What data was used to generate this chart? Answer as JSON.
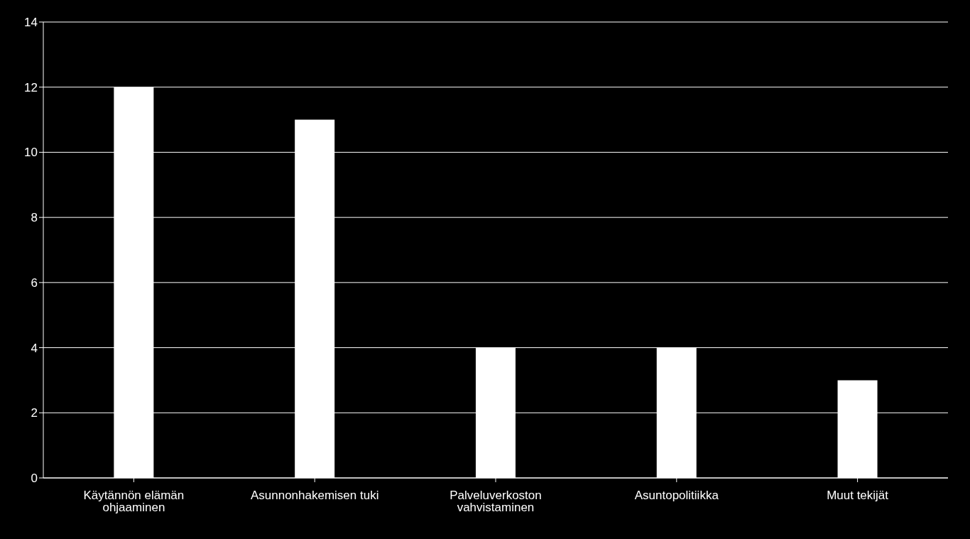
{
  "chart_data": {
    "type": "bar",
    "categories": [
      "Käytännön elämän ohjaaminen",
      "Asunnonhakemisen tuki",
      "Palveluverkoston vahvistaminen",
      "Asuntopolitiikka",
      "Muut tekijät"
    ],
    "values": [
      12,
      11,
      4,
      4,
      3
    ],
    "color": "#ffffff",
    "ylim": [
      0,
      14
    ],
    "yticks": [
      0,
      2,
      4,
      6,
      8,
      10,
      12,
      14
    ],
    "grid": "y",
    "legend": false
  }
}
